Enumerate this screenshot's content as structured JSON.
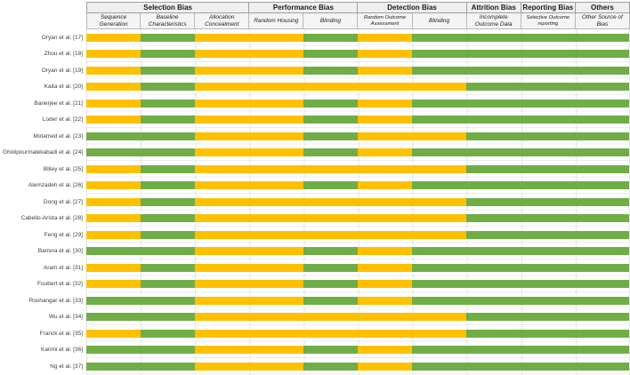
{
  "chart_data": {
    "type": "heatmap",
    "title": "",
    "legend_position": "none",
    "palette": {
      "yellow": "#FFC000",
      "green": "#70AD47"
    },
    "column_groups": [
      {
        "label": "Selection Bias",
        "span": 3
      },
      {
        "label": "Performance Bias",
        "span": 2
      },
      {
        "label": "Detection Bias",
        "span": 2
      },
      {
        "label": "Attrition Bias",
        "span": 1
      },
      {
        "label": "Reporting Bias",
        "span": 1
      },
      {
        "label": "Others",
        "span": 1
      }
    ],
    "columns": [
      "Sequence Generation",
      "Baseline Characteristics",
      "Allocation Concealment",
      "Random Housing",
      "Blinding",
      "Random Outcome Assessment",
      "Blinding",
      "Incomplete Outcome Data",
      "Selective Outcome reporting",
      "Other Source of Bias"
    ],
    "rows": [
      {
        "study": "Oryan et al. [17]",
        "values": [
          "yellow",
          "green",
          "yellow",
          "yellow",
          "green",
          "yellow",
          "green",
          "green",
          "green",
          "green"
        ]
      },
      {
        "study": "Zhou et al. [18]",
        "values": [
          "yellow",
          "green",
          "yellow",
          "yellow",
          "green",
          "yellow",
          "green",
          "green",
          "green",
          "green"
        ]
      },
      {
        "study": "Oryan et al. [19]",
        "values": [
          "yellow",
          "green",
          "yellow",
          "yellow",
          "green",
          "yellow",
          "green",
          "green",
          "green",
          "green"
        ]
      },
      {
        "study": "Kaita et al. [20]",
        "values": [
          "yellow",
          "green",
          "yellow",
          "yellow",
          "yellow",
          "yellow",
          "yellow",
          "green",
          "green",
          "green"
        ]
      },
      {
        "study": "Banerjee et al. [21]",
        "values": [
          "yellow",
          "green",
          "yellow",
          "yellow",
          "green",
          "yellow",
          "green",
          "green",
          "green",
          "green"
        ]
      },
      {
        "study": "Loder et al. [22]",
        "values": [
          "yellow",
          "green",
          "yellow",
          "yellow",
          "green",
          "yellow",
          "green",
          "green",
          "green",
          "green"
        ]
      },
      {
        "study": "Motamed et al. [23]",
        "values": [
          "green",
          "green",
          "yellow",
          "yellow",
          "green",
          "yellow",
          "yellow",
          "green",
          "green",
          "green"
        ]
      },
      {
        "study": "Gholipourmalekabadi et al. [24]",
        "values": [
          "green",
          "green",
          "yellow",
          "yellow",
          "green",
          "yellow",
          "green",
          "green",
          "green",
          "green"
        ]
      },
      {
        "study": "Bliley et al. [25]",
        "values": [
          "yellow",
          "green",
          "yellow",
          "yellow",
          "yellow",
          "yellow",
          "yellow",
          "green",
          "green",
          "green"
        ]
      },
      {
        "study": "Alemzadeh et al. [26]",
        "values": [
          "yellow",
          "green",
          "yellow",
          "yellow",
          "green",
          "yellow",
          "green",
          "green",
          "green",
          "green"
        ]
      },
      {
        "study": "Dong et al. [27]",
        "values": [
          "yellow",
          "green",
          "yellow",
          "yellow",
          "yellow",
          "yellow",
          "yellow",
          "green",
          "green",
          "green"
        ]
      },
      {
        "study": "Cabello-Arista et al. [28]",
        "values": [
          "yellow",
          "green",
          "yellow",
          "yellow",
          "yellow",
          "yellow",
          "yellow",
          "green",
          "green",
          "green"
        ]
      },
      {
        "study": "Feng et al. [29]",
        "values": [
          "yellow",
          "green",
          "yellow",
          "yellow",
          "yellow",
          "yellow",
          "yellow",
          "green",
          "green",
          "green"
        ]
      },
      {
        "study": "Barrera et al. [30]",
        "values": [
          "green",
          "green",
          "yellow",
          "yellow",
          "green",
          "yellow",
          "green",
          "green",
          "green",
          "green"
        ]
      },
      {
        "study": "Aram et al. [31]",
        "values": [
          "yellow",
          "green",
          "yellow",
          "yellow",
          "green",
          "yellow",
          "green",
          "green",
          "green",
          "green"
        ]
      },
      {
        "study": "Foubert et al. [32]",
        "values": [
          "yellow",
          "green",
          "yellow",
          "yellow",
          "green",
          "yellow",
          "green",
          "green",
          "green",
          "green"
        ]
      },
      {
        "study": "Roshangar et al. [33]",
        "values": [
          "green",
          "green",
          "yellow",
          "yellow",
          "green",
          "yellow",
          "green",
          "green",
          "green",
          "green"
        ]
      },
      {
        "study": "Wu et al. [34]",
        "values": [
          "green",
          "green",
          "yellow",
          "yellow",
          "yellow",
          "yellow",
          "yellow",
          "green",
          "green",
          "green"
        ]
      },
      {
        "study": "Franck et al. [35]",
        "values": [
          "yellow",
          "green",
          "yellow",
          "yellow",
          "yellow",
          "yellow",
          "yellow",
          "green",
          "green",
          "green"
        ]
      },
      {
        "study": "Karimi et al. [36]",
        "values": [
          "green",
          "green",
          "yellow",
          "yellow",
          "green",
          "yellow",
          "green",
          "green",
          "green",
          "green"
        ]
      },
      {
        "study": "Ng et al. [37]",
        "values": [
          "green",
          "green",
          "yellow",
          "yellow",
          "green",
          "yellow",
          "green",
          "green",
          "green",
          "green"
        ]
      }
    ]
  }
}
